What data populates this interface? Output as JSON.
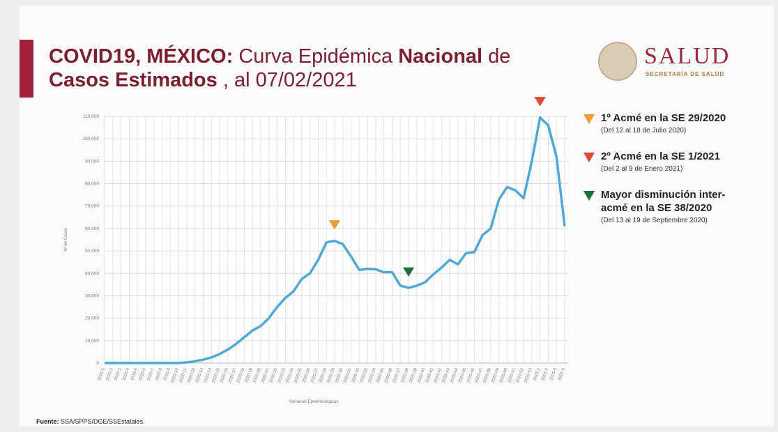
{
  "chart_data": {
    "type": "line",
    "title": [
      {
        "text": "COVID19, MÉXICO:",
        "bold": true
      },
      {
        "text": "Curva Epidémica",
        "bold": false
      },
      {
        "text": "Nacional",
        "bold": true
      },
      {
        "text": "de",
        "bold": false
      },
      {
        "text": "Casos Estimados",
        "bold": true
      },
      {
        "text": ", al 07/02/2021",
        "bold": false
      }
    ],
    "title_color": "#7a1e30",
    "logo": {
      "name": "SALUD",
      "subtitle": "SECRETARÍA DE SALUD"
    },
    "y_label": "Nº de Casos",
    "x_label": "Semanas Epidemiológicas",
    "source": {
      "label": "Fuente:",
      "text": "SSA/SPPS/DGE/SSEstatales."
    },
    "categories": [
      "2020-1",
      "2020-2",
      "2020-3",
      "2020-4",
      "2020-5",
      "2020-6",
      "2020-7",
      "2020-8",
      "2020-9",
      "2020-10",
      "2020-11",
      "2020-12",
      "2020-13",
      "2020-14",
      "2020-15",
      "2020-16",
      "2020-17",
      "2020-18",
      "2020-19",
      "2020-20",
      "2020-21",
      "2020-22",
      "2020-23",
      "2020-24",
      "2020-25",
      "2020-26",
      "2020-27",
      "2020-28",
      "2020-29",
      "2020-30",
      "2020-31",
      "2020-32",
      "2020-33",
      "2020-34",
      "2020-35",
      "2020-36",
      "2020-37",
      "2020-38",
      "2020-39",
      "2020-40",
      "2020-41",
      "2020-42",
      "2020-43",
      "2020-44",
      "2020-45",
      "2020-46",
      "2020-47",
      "2020-48",
      "2020-49",
      "2020-50",
      "2020-51",
      "2020-52",
      "2020-53",
      "2021-1",
      "2021-2",
      "2021-3",
      "2021-4"
    ],
    "series": [
      {
        "name": "Casos estimados",
        "color": "#4fa8d8",
        "values": [
          0,
          0,
          0,
          0,
          0,
          0,
          0,
          0,
          0,
          0,
          300,
          800,
          1500,
          2500,
          4000,
          6000,
          8500,
          11500,
          14500,
          16500,
          20000,
          25000,
          29000,
          32000,
          37500,
          40000,
          46000,
          53800,
          54500,
          53000,
          47500,
          41500,
          42000,
          41800,
          40500,
          40500,
          34500,
          33500,
          34500,
          36000,
          39500,
          42500,
          46000,
          44000,
          49000,
          49500,
          57000,
          60000,
          73000,
          78500,
          77000,
          73500,
          90000,
          109500,
          106000,
          92000,
          61000
        ]
      }
    ],
    "ylim": [
      0,
      110000
    ],
    "yticks": [
      0,
      {
        "value": 10000,
        "label": "10,000"
      },
      {
        "value": 20000,
        "label": "20,000"
      },
      {
        "value": 30000,
        "label": "30,000"
      },
      {
        "value": 40000,
        "label": "40,000"
      },
      {
        "value": 50000,
        "label": "50,000"
      },
      {
        "value": 60000,
        "label": "60,000"
      },
      {
        "value": 70000,
        "label": "70,000"
      },
      {
        "value": 80000,
        "label": "80,000"
      },
      {
        "value": 90000,
        "label": "90,000"
      },
      {
        "value": 100000,
        "label": "100,000"
      },
      {
        "value": 110000,
        "label": "110,000"
      }
    ],
    "grid": true,
    "annotations": [
      {
        "category": "2020-29",
        "color": "#ec9a34",
        "lines": [
          "1º Acmé en la SE 29/2020"
        ],
        "detail": "(Del 12 al 18 de Julio 2020)"
      },
      {
        "category": "2021-1",
        "color": "#dd4a33",
        "lines": [
          "2º Acmé en la SE 1/2021"
        ],
        "detail": "(Del 2 al 9 de Enero 2021)"
      },
      {
        "category": "2020-38",
        "color": "#1f6e3d",
        "lines": [
          "Mayor disminución inter-",
          "acmé en la SE 38/2020"
        ],
        "detail": "(Del 13 al 19 de Septiembre 2020)"
      }
    ]
  }
}
